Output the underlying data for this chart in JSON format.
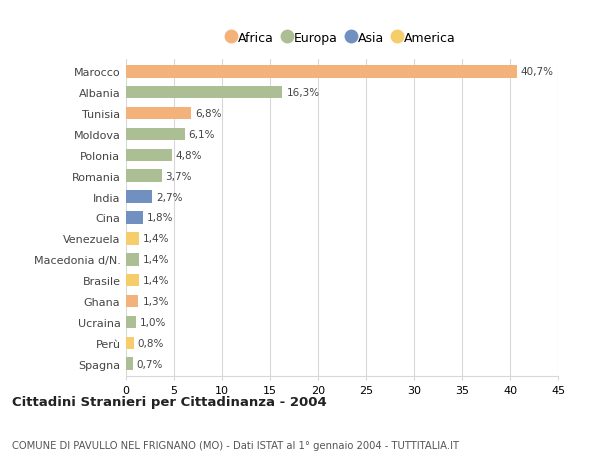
{
  "categories": [
    "Marocco",
    "Albania",
    "Tunisia",
    "Moldova",
    "Polonia",
    "Romania",
    "India",
    "Cina",
    "Venezuela",
    "Macedonia d/N.",
    "Brasile",
    "Ghana",
    "Ucraina",
    "Perù",
    "Spagna"
  ],
  "values": [
    40.7,
    16.3,
    6.8,
    6.1,
    4.8,
    3.7,
    2.7,
    1.8,
    1.4,
    1.4,
    1.4,
    1.3,
    1.0,
    0.8,
    0.7
  ],
  "labels": [
    "40,7%",
    "16,3%",
    "6,8%",
    "6,1%",
    "4,8%",
    "3,7%",
    "2,7%",
    "1,8%",
    "1,4%",
    "1,4%",
    "1,4%",
    "1,3%",
    "1,0%",
    "0,8%",
    "0,7%"
  ],
  "continents": [
    "Africa",
    "Europa",
    "Africa",
    "Europa",
    "Europa",
    "Europa",
    "Asia",
    "Asia",
    "America",
    "Europa",
    "America",
    "Africa",
    "Europa",
    "America",
    "Europa"
  ],
  "continent_colors": {
    "Africa": "#F2B27A",
    "Europa": "#ABBE94",
    "Asia": "#7090C0",
    "America": "#F5CD6A"
  },
  "legend_order": [
    "Africa",
    "Europa",
    "Asia",
    "America"
  ],
  "xlim": [
    0,
    45
  ],
  "xticks": [
    0,
    5,
    10,
    15,
    20,
    25,
    30,
    35,
    40,
    45
  ],
  "title": "Cittadini Stranieri per Cittadinanza - 2004",
  "subtitle": "COMUNE DI PAVULLO NEL FRIGNANO (MO) - Dati ISTAT al 1° gennaio 2004 - TUTTITALIA.IT",
  "background_color": "#ffffff",
  "grid_color": "#d8d8d8",
  "bar_height": 0.6
}
